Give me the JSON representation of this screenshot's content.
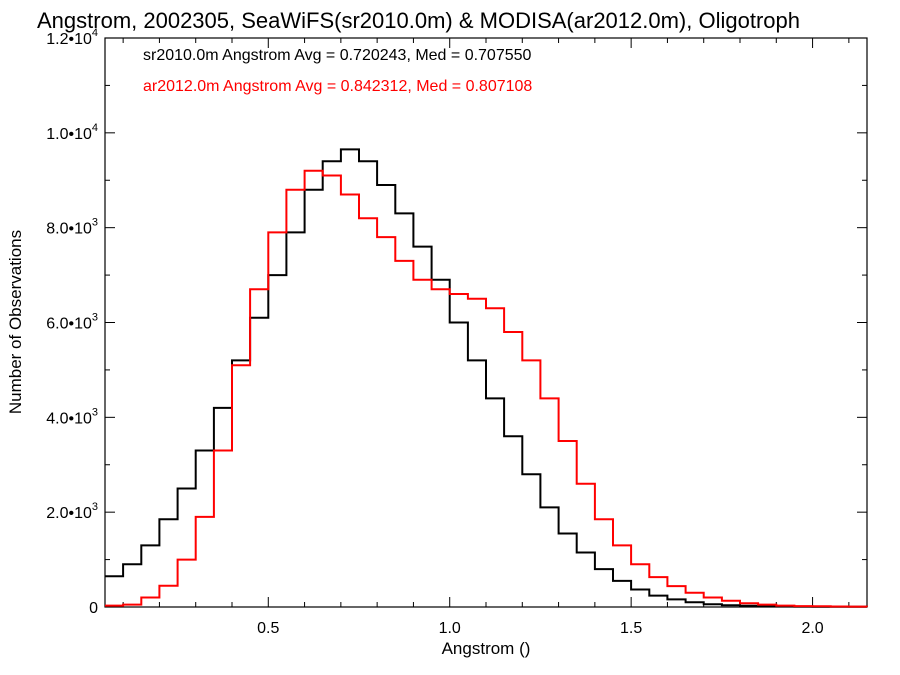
{
  "chart_data": {
    "type": "line",
    "title": "Angstrom, 2002305, SeaWiFS(sr2010.0m) & MODISA(ar2012.0m), Oligotroph",
    "xlabel": "Angstrom ()",
    "ylabel": "Number of Observations",
    "xlim": [
      0.05,
      2.15
    ],
    "ylim": [
      0,
      12000
    ],
    "x_ticks": [
      0.5,
      1.0,
      1.5,
      2.0
    ],
    "x_tick_labels": [
      "0.5",
      "1.0",
      "1.5",
      "2.0"
    ],
    "y_ticks": [
      0,
      2000,
      4000,
      6000,
      8000,
      10000,
      12000
    ],
    "y_tick_labels": [
      {
        "mantissa": "0",
        "exp": ""
      },
      {
        "mantissa": "2.0•10",
        "exp": "3"
      },
      {
        "mantissa": "4.0•10",
        "exp": "3"
      },
      {
        "mantissa": "6.0•10",
        "exp": "3"
      },
      {
        "mantissa": "8.0•10",
        "exp": "3"
      },
      {
        "mantissa": "1.0•10",
        "exp": "4"
      },
      {
        "mantissa": "1.2•10",
        "exp": "4"
      }
    ],
    "step": "histogram",
    "series": [
      {
        "name": "sr2010.0m",
        "color": "#000000",
        "annotation": "sr2010.0m Angstrom Avg = 0.720243, Med = 0.707550",
        "x": [
          0.05,
          0.1,
          0.15,
          0.2,
          0.25,
          0.3,
          0.35,
          0.4,
          0.45,
          0.5,
          0.55,
          0.6,
          0.65,
          0.7,
          0.75,
          0.8,
          0.85,
          0.9,
          0.95,
          1.0,
          1.05,
          1.1,
          1.15,
          1.2,
          1.25,
          1.3,
          1.35,
          1.4,
          1.45,
          1.5,
          1.55,
          1.6,
          1.65,
          1.7,
          1.75,
          1.8,
          1.85,
          1.9,
          1.95,
          2.0,
          2.05,
          2.1,
          2.15
        ],
        "y": [
          650,
          900,
          1300,
          1850,
          2500,
          3300,
          4200,
          5200,
          6100,
          7000,
          7900,
          8800,
          9400,
          9650,
          9400,
          8900,
          8300,
          7600,
          6900,
          6000,
          5200,
          4400,
          3600,
          2800,
          2100,
          1550,
          1150,
          800,
          550,
          370,
          240,
          160,
          100,
          60,
          35,
          25,
          15,
          10,
          8,
          6,
          5,
          5,
          5
        ]
      },
      {
        "name": "ar2012.0m",
        "color": "#ff0000",
        "annotation": "ar2012.0m Angstrom Avg = 0.842312, Med = 0.807108",
        "x": [
          0.05,
          0.1,
          0.15,
          0.2,
          0.25,
          0.3,
          0.35,
          0.4,
          0.45,
          0.5,
          0.55,
          0.6,
          0.65,
          0.7,
          0.75,
          0.8,
          0.85,
          0.9,
          0.95,
          1.0,
          1.05,
          1.1,
          1.15,
          1.2,
          1.25,
          1.3,
          1.35,
          1.4,
          1.45,
          1.5,
          1.55,
          1.6,
          1.65,
          1.7,
          1.75,
          1.8,
          1.85,
          1.9,
          1.95,
          2.0,
          2.05,
          2.1,
          2.15
        ],
        "y": [
          30,
          50,
          200,
          450,
          1000,
          1900,
          3300,
          5100,
          6700,
          7900,
          8800,
          9200,
          9100,
          8700,
          8200,
          7800,
          7300,
          6900,
          6700,
          6600,
          6500,
          6300,
          5800,
          5200,
          4400,
          3500,
          2600,
          1850,
          1300,
          900,
          630,
          440,
          300,
          200,
          130,
          80,
          50,
          30,
          20,
          15,
          10,
          8,
          5
        ]
      }
    ]
  }
}
